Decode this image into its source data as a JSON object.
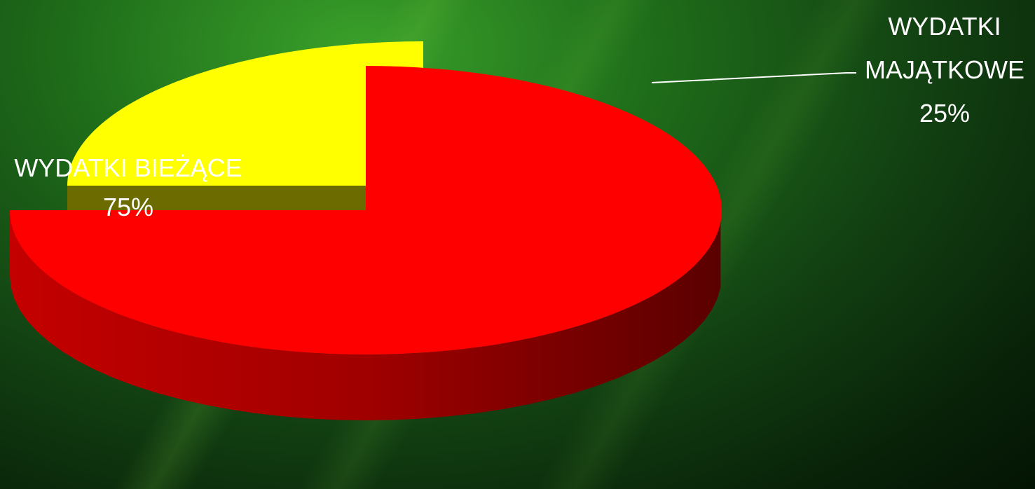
{
  "chart_data": {
    "type": "pie",
    "categories": [
      "WYDATKI BIEŻĄCE",
      "WYDATKI MAJĄTKOWE"
    ],
    "values": [
      75,
      25
    ],
    "colors": [
      "#ff0000",
      "#ffff00"
    ],
    "data_labels": [
      [
        "WYDATKI BIEŻĄCE",
        "75%"
      ],
      [
        "WYDATKI",
        "MAJĄTKOWE",
        "25%"
      ]
    ],
    "style": "3d-exploded"
  }
}
